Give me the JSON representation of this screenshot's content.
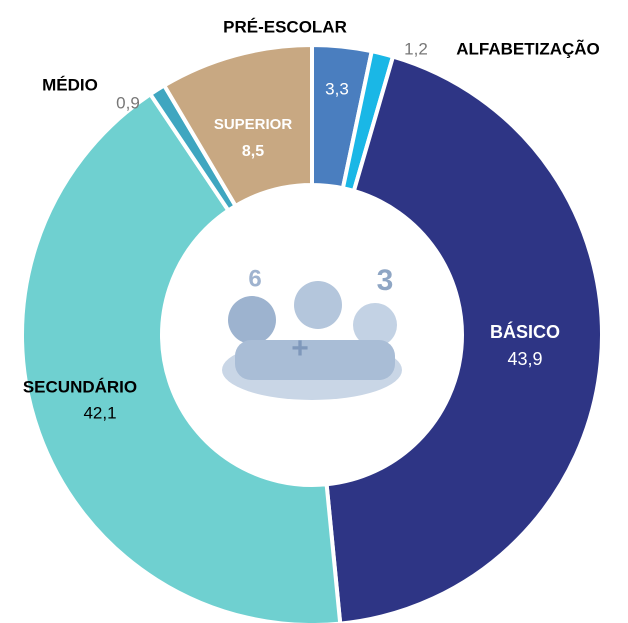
{
  "chart_data": {
    "type": "donut",
    "categories": [
      "PRÉ-ESCOLAR",
      "ALFABETIZAÇÃO",
      "BÁSICO",
      "SECUNDÁRIO",
      "MÉDIO",
      "SUPERIOR"
    ],
    "values": [
      3.3,
      1.2,
      43.9,
      42.1,
      0.9,
      8.5
    ],
    "value_labels": [
      "3,3",
      "1,2",
      "43,9",
      "42,1",
      "0,9",
      "8,5"
    ],
    "colors": [
      "#4a7ebf",
      "#1ab7e6",
      "#2e3585",
      "#6fd0d0",
      "#3fa6c0",
      "#c8a882"
    ]
  }
}
